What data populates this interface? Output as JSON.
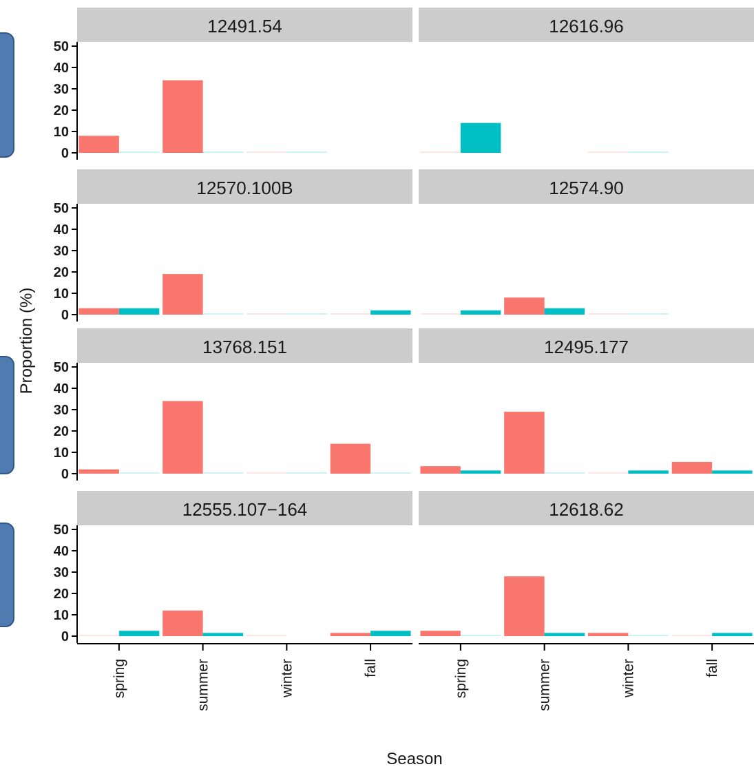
{
  "chart_data": {
    "type": "bar",
    "xlabel": "Season",
    "ylabel": "Proportion (%)",
    "ylim": [
      0,
      50
    ],
    "yticks": [
      "0",
      "10",
      "20",
      "30",
      "40",
      "50"
    ],
    "categories": [
      "spring",
      "summer",
      "winter",
      "fall"
    ],
    "colors": {
      "series1": "#F8766D",
      "series2": "#00BFC4",
      "strip": "#CCCCCC",
      "callout": "#4F7BB0"
    },
    "panels": [
      {
        "title": "12491.54",
        "series1": [
          8,
          34,
          0,
          null
        ],
        "series2": [
          0,
          0,
          0,
          null
        ]
      },
      {
        "title": "12616.96",
        "series1": [
          0,
          null,
          0,
          null
        ],
        "series2": [
          14,
          null,
          0,
          null
        ]
      },
      {
        "title": "12570.100B",
        "series1": [
          3,
          19,
          0,
          0
        ],
        "series2": [
          3,
          0,
          0,
          2
        ]
      },
      {
        "title": "12574.90",
        "series1": [
          0,
          8,
          0,
          null
        ],
        "series2": [
          2,
          3,
          0,
          null
        ]
      },
      {
        "title": "13768.151",
        "series1": [
          2,
          34,
          0,
          14
        ],
        "series2": [
          0,
          0,
          0,
          0
        ]
      },
      {
        "title": "12495.177",
        "series1": [
          3.5,
          29,
          0,
          5.5
        ],
        "series2": [
          1.5,
          0,
          1.5,
          1.5
        ]
      },
      {
        "title": "12555.107−164",
        "series1": [
          0,
          12,
          0,
          1.5
        ],
        "series2": [
          2.5,
          1.5,
          null,
          2.5
        ]
      },
      {
        "title": "12618.62",
        "series1": [
          2.5,
          28,
          1.5,
          0
        ],
        "series2": [
          0,
          1.5,
          0,
          1.5
        ]
      }
    ]
  }
}
